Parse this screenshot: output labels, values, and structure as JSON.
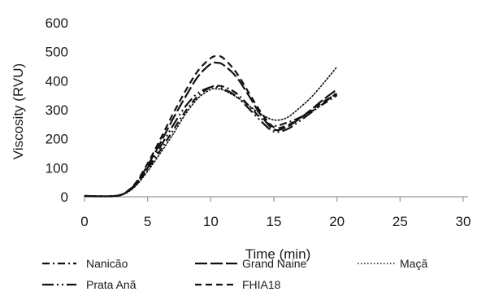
{
  "chart_data": {
    "type": "line",
    "title": "",
    "xlabel": "Time (min)",
    "ylabel": "Viscosity (RVU)",
    "xlim": [
      0,
      30
    ],
    "ylim": [
      0,
      600
    ],
    "x_ticks": [
      0,
      5,
      10,
      15,
      20,
      25,
      30
    ],
    "y_ticks": [
      0,
      100,
      200,
      300,
      400,
      500,
      600
    ],
    "x_tick_labels": [
      "0",
      "5",
      "10",
      "15",
      "20",
      "25",
      "30"
    ],
    "y_tick_labels": [
      "0",
      "100",
      "200",
      "300",
      "400",
      "500",
      "600"
    ],
    "grid": false,
    "legend_position": "bottom",
    "series": [
      {
        "name": "Nanicão",
        "style": "dash-dot",
        "x": [
          0,
          1,
          2,
          3,
          4,
          5,
          6,
          7,
          8,
          9,
          10,
          10.5,
          11,
          12,
          13,
          14,
          15,
          16,
          17,
          18,
          19,
          20
        ],
        "y": [
          3,
          2,
          2,
          8,
          38,
          95,
          160,
          228,
          295,
          348,
          378,
          382,
          380,
          358,
          315,
          270,
          245,
          255,
          272,
          295,
          322,
          350
        ]
      },
      {
        "name": "Grand Naine",
        "style": "long-dash",
        "x": [
          0,
          1,
          2,
          3,
          4,
          5,
          6,
          7,
          8,
          9,
          10,
          10.5,
          11,
          12,
          13,
          14,
          15,
          16,
          17,
          18,
          19,
          20
        ],
        "y": [
          3,
          2,
          2,
          8,
          42,
          108,
          185,
          268,
          345,
          415,
          458,
          462,
          455,
          415,
          350,
          280,
          232,
          240,
          268,
          302,
          338,
          370
        ]
      },
      {
        "name": "Maçã",
        "style": "dotted",
        "x": [
          0,
          1,
          2,
          3,
          4,
          5,
          6,
          7,
          8,
          9,
          10,
          10.5,
          11,
          12,
          13,
          14,
          15,
          16,
          17,
          18,
          19,
          20
        ],
        "y": [
          3,
          2,
          2,
          7,
          35,
          88,
          150,
          215,
          285,
          340,
          370,
          372,
          368,
          345,
          315,
          285,
          265,
          272,
          305,
          345,
          395,
          448
        ]
      },
      {
        "name": "Prata Anã",
        "style": "long-dash-dot-dot",
        "x": [
          0,
          1,
          2,
          3,
          4,
          5,
          6,
          7,
          8,
          9,
          10,
          10.5,
          11,
          12,
          13,
          14,
          15,
          16,
          17,
          18,
          19,
          20
        ],
        "y": [
          3,
          2,
          2,
          8,
          40,
          100,
          172,
          245,
          312,
          358,
          378,
          378,
          372,
          348,
          305,
          260,
          225,
          232,
          260,
          292,
          325,
          360
        ]
      },
      {
        "name": "FHIA18",
        "style": "dashed",
        "x": [
          0,
          1,
          2,
          3,
          4,
          5,
          6,
          7,
          8,
          9,
          10,
          10.5,
          11,
          12,
          13,
          14,
          15,
          16,
          17,
          18,
          19,
          20
        ],
        "y": [
          3,
          2,
          2,
          9,
          45,
          115,
          198,
          285,
          365,
          435,
          478,
          485,
          478,
          430,
          360,
          290,
          240,
          245,
          270,
          300,
          330,
          355
        ]
      }
    ]
  }
}
